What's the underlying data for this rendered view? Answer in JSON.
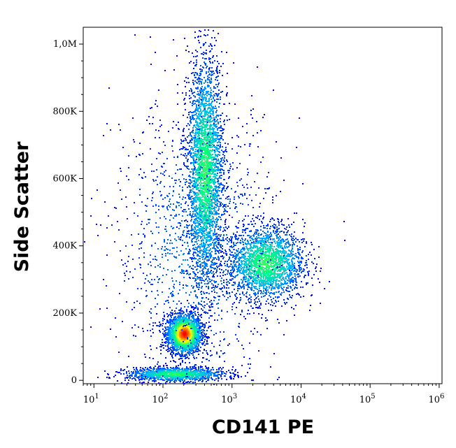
{
  "chart_data": {
    "type": "scatter",
    "title": "",
    "xlabel": "CD141 PE",
    "ylabel": "Side Scatter",
    "x_scale": "log",
    "xlim": [
      7,
      1100000
    ],
    "ylim": [
      -10000,
      1050000
    ],
    "x_ticks": [
      {
        "value": 10,
        "base": "10",
        "exp": "1"
      },
      {
        "value": 100,
        "base": "10",
        "exp": "2"
      },
      {
        "value": 1000,
        "base": "10",
        "exp": "3"
      },
      {
        "value": 10000,
        "base": "10",
        "exp": "4"
      },
      {
        "value": 100000,
        "base": "10",
        "exp": "5"
      },
      {
        "value": 1000000,
        "base": "10",
        "exp": "6"
      }
    ],
    "y_ticks": [
      {
        "value": 0,
        "label": "0"
      },
      {
        "value": 200000,
        "label": "200K"
      },
      {
        "value": 400000,
        "label": "400K"
      },
      {
        "value": 600000,
        "label": "600K"
      },
      {
        "value": 800000,
        "label": "800K"
      },
      {
        "value": 1000000,
        "label": "1,0M"
      }
    ],
    "grid": false,
    "legend": "none",
    "color_scale": [
      "#0000ff",
      "#00b4ff",
      "#00ff7f",
      "#ffff00",
      "#ff0000"
    ],
    "populations": [
      {
        "x_center": 200,
        "y_center": 140000,
        "x_spread_decades": 0.12,
        "y_spread": 28000,
        "density": "high",
        "count": 2600
      },
      {
        "x_center": 400,
        "y_center": 620000,
        "x_spread_decades": 0.13,
        "y_spread": 170000,
        "density": "medium",
        "count": 3000
      },
      {
        "x_center": 3000,
        "y_center": 350000,
        "x_spread_decades": 0.28,
        "y_spread": 55000,
        "density": "medium",
        "count": 2200
      },
      {
        "x_center": 150,
        "y_center": 20000,
        "x_spread_decades": 0.35,
        "y_spread": 10000,
        "density": "medium",
        "count": 1300
      },
      {
        "x_center": 300,
        "y_center": 400000,
        "x_spread_decades": 0.6,
        "y_spread": 220000,
        "density": "low",
        "count": 1400
      }
    ]
  }
}
